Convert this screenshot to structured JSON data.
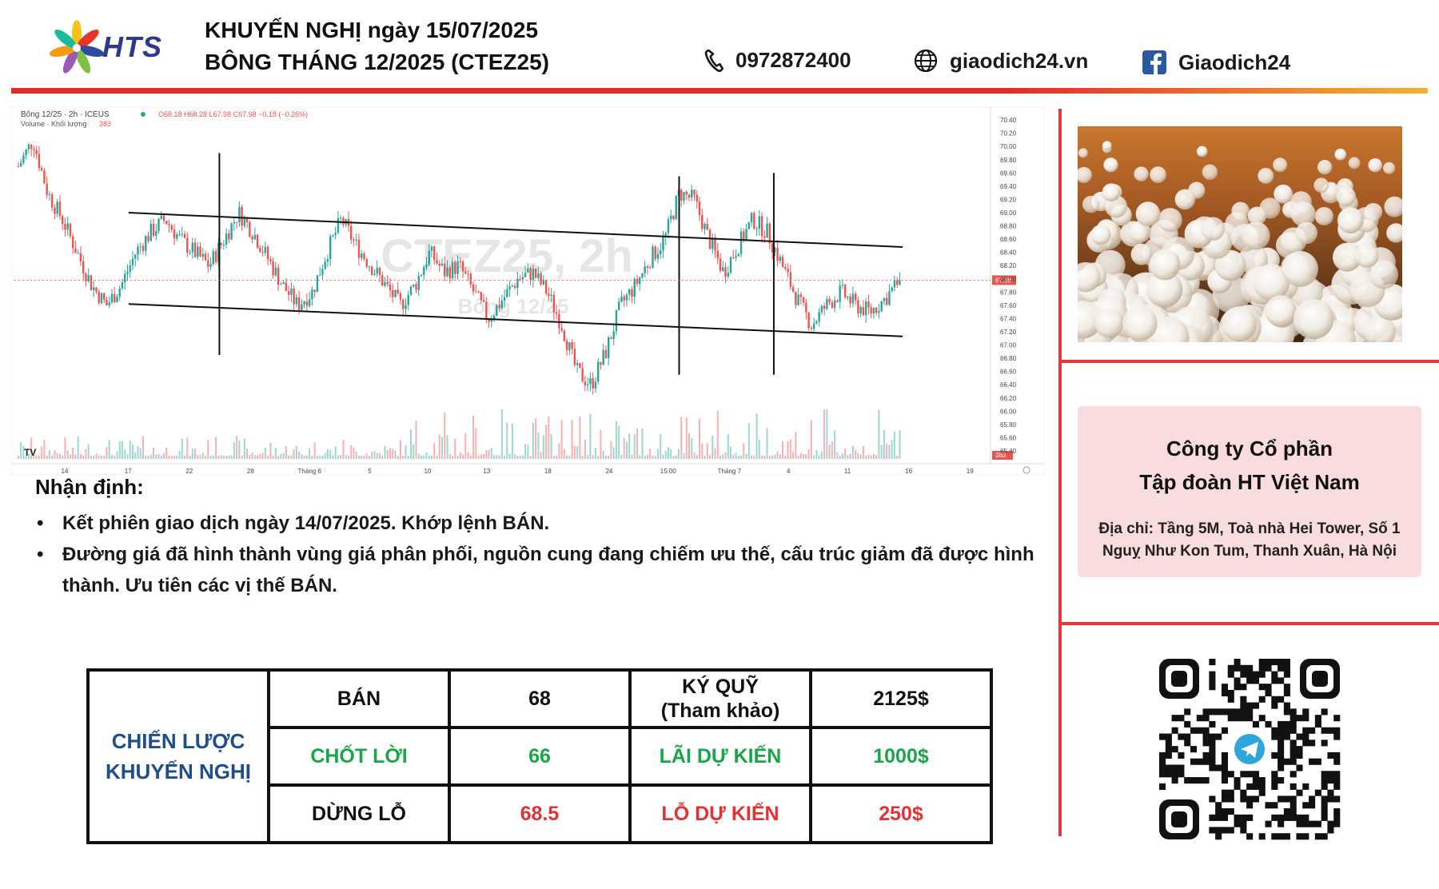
{
  "header": {
    "logo_text": "HTS",
    "title_line1": "KHUYẾN NGHỊ ngày 15/07/2025",
    "title_line2": "BÔNG THÁNG 12/2025 (CTEZ25)",
    "phone": "0972872400",
    "website": "giaodich24.vn",
    "facebook": "Giaodich24"
  },
  "chart_legend": {
    "symbol": "Bông 12/25 · 2h · ICEUS",
    "ohlc": "O68.18 H68.28 L67.98 C67.98 −0.18 (−0.26%)",
    "volume_label": "Volume · Khối lượng",
    "volume_value": "383",
    "last_price_tag": "67.98",
    "volume_tag": "383",
    "watermark_big": "CTEZ25, 2h",
    "watermark_small": "Bông 12/25"
  },
  "chart_data": {
    "type": "candlestick",
    "title": "",
    "xlabel": "",
    "ylabel": "",
    "ylim": [
      65.4,
      70.45
    ],
    "y_ticks": [
      "70.40",
      "70.20",
      "70.00",
      "69.80",
      "69.60",
      "69.40",
      "69.20",
      "69.00",
      "68.80",
      "68.60",
      "68.40",
      "68.20",
      "68.00",
      "67.80",
      "67.60",
      "67.40",
      "67.20",
      "67.00",
      "66.80",
      "66.60",
      "66.40",
      "66.20",
      "66.00",
      "65.80",
      "65.60",
      "65.40"
    ],
    "x_ticks": [
      "14",
      "17",
      "22",
      "28",
      "Tháng 6",
      "5",
      "10",
      "13",
      "18",
      "24",
      "15:00",
      "Tháng 7",
      "4",
      "11",
      "16",
      "19"
    ],
    "close_path": [
      69.7,
      70.1,
      69.3,
      68.9,
      68.4,
      67.9,
      67.6,
      67.9,
      68.4,
      68.7,
      68.9,
      68.6,
      68.4,
      68.2,
      68.6,
      69.0,
      68.7,
      68.3,
      67.9,
      67.6,
      67.8,
      68.4,
      68.9,
      68.5,
      68.2,
      67.9,
      67.6,
      67.9,
      68.4,
      68.1,
      68.2,
      67.8,
      67.4,
      67.7,
      68.0,
      68.1,
      67.8,
      67.3,
      66.6,
      66.4,
      66.9,
      67.6,
      67.9,
      68.3,
      68.6,
      69.3,
      69.2,
      68.6,
      68.1,
      68.5,
      68.9,
      68.7,
      68.2,
      67.7,
      67.3,
      67.6,
      67.8,
      67.6,
      67.5,
      67.7,
      67.98
    ],
    "volume": [
      383
    ],
    "annotations": {
      "channel_upper": [
        [
          0.117,
          69.0
        ],
        [
          0.91,
          68.48
        ]
      ],
      "channel_lower": [
        [
          0.117,
          67.62
        ],
        [
          0.91,
          67.13
        ]
      ],
      "vertical_markers": [
        0.21,
        0.681,
        0.778
      ]
    }
  },
  "analysis": {
    "title": "Nhận định:",
    "bullets": [
      "Kết phiên giao dịch ngày 14/07/2025. Khớp lệnh BÁN.",
      "Đường giá đã hình thành vùng giá phân phối, nguồn cung đang chiếm ưu thế, cấu trúc giảm đã được hình thành. Ưu tiên các vị thế BÁN."
    ]
  },
  "strategy": {
    "label_line1": "CHIẾN LƯỢC",
    "label_line2": "KHUYẾN NGHỊ",
    "rows": [
      {
        "action": "BÁN",
        "price": "68",
        "metric_line1": "KÝ QUỸ",
        "metric_line2": "(Tham khảo)",
        "amount": "2125$"
      },
      {
        "action": "CHỐT LỜI",
        "price": "66",
        "metric_line1": "LÃI DỰ KIẾN",
        "metric_line2": "",
        "amount": "1000$"
      },
      {
        "action": "DỪNG LỖ",
        "price": "68.5",
        "metric_line1": "LỖ DỰ KIẾN",
        "metric_line2": "",
        "amount": "250$"
      }
    ]
  },
  "company": {
    "name_line1": "Công ty Cổ phần",
    "name_line2": "Tập đoàn HT Việt Nam",
    "address_line1": "Địa chỉ: Tầng 5M, Toà nhà Hei Tower, Số 1",
    "address_line2": "Nguỵ Như Kon Tum, Thanh Xuân, Hà Nội"
  },
  "colors": {
    "brand_red": "#e23a3a",
    "header_gradient_end": "#f2b233",
    "strategy_blue": "#1f4e8c",
    "profit_green": "#19a64a",
    "loss_red": "#e23333",
    "candle_up": "#26a69a",
    "candle_down": "#ef5350"
  },
  "icons": [
    "phone-icon",
    "globe-icon",
    "facebook-icon",
    "telegram-icon"
  ]
}
